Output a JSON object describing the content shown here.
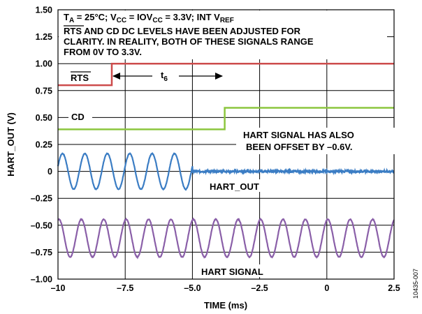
{
  "chart_data": {
    "type": "line",
    "xlabel": "TIME (ms)",
    "ylabel": "HART_OUT (V)",
    "xlim": [
      -10,
      2.5
    ],
    "ylim": [
      -1.0,
      1.5
    ],
    "xticks": [
      "–10",
      "–7.5",
      "–5.0",
      "–2.5",
      "0",
      "2.5"
    ],
    "yticks": [
      "1.50",
      "1.25",
      "1.00",
      "0.75",
      "0.50",
      "0.25",
      "0",
      "–0.25",
      "–0.50",
      "–0.75",
      "–1.00"
    ],
    "grid": true,
    "colors": {
      "rts": "#cd4c4c",
      "cd": "#8cc63e",
      "hart_out": "#3b7dc4",
      "hart_signal": "#8a5fa8"
    },
    "series": [
      {
        "name": "RTS",
        "type": "step",
        "x": [
          -10,
          -8.0,
          -8.0,
          2.5
        ],
        "y": [
          0.8,
          0.8,
          1.0,
          1.0
        ]
      },
      {
        "name": "CD",
        "type": "step",
        "x": [
          -10,
          -3.8,
          -3.8,
          2.5
        ],
        "y": [
          0.39,
          0.39,
          0.59,
          0.59
        ]
      },
      {
        "name": "HART_OUT",
        "type": "sine_then_flat",
        "center": 0,
        "amplitude": 0.165,
        "cycles": [
          [
            -10,
            -5.0
          ]
        ],
        "frequency_khz": 1.2,
        "flat_from": -5.0
      },
      {
        "name": "HART SIGNAL",
        "type": "sine",
        "center": -0.62,
        "amplitude": 0.175,
        "frequency_khz": 1.2
      }
    ],
    "annotations": {
      "conditions": {
        "ta": "T",
        "ta_sub": "A",
        "ta_rest": " = 25°C; V",
        "vcc_sub": "CC",
        "iov": " = IOV",
        "iov_sub": "CC",
        "iov_rest": " = 3.3V; INT V",
        "ref_sub": "REF"
      },
      "note_line1_rts": "RTS",
      "note_line1_rest": " AND CD DC LEVELS HAVE BEEN ADJUSTED FOR",
      "note_line2": "CLARITY. IN REALITY, BOTH OF THESE SIGNALS RANGE",
      "note_line3": "FROM 0V TO 3.3V.",
      "rts_label": "RTS",
      "t6_label": "t",
      "t6_sub": "6",
      "cd_label": "CD",
      "offset_line1": "HART SIGNAL HAS ALSO",
      "offset_line2": "BEEN OFFSET BY –0.6V.",
      "hart_out_label": "HART_OUT",
      "hart_signal_label": "HART SIGNAL",
      "figure_id": "10435-007"
    }
  }
}
